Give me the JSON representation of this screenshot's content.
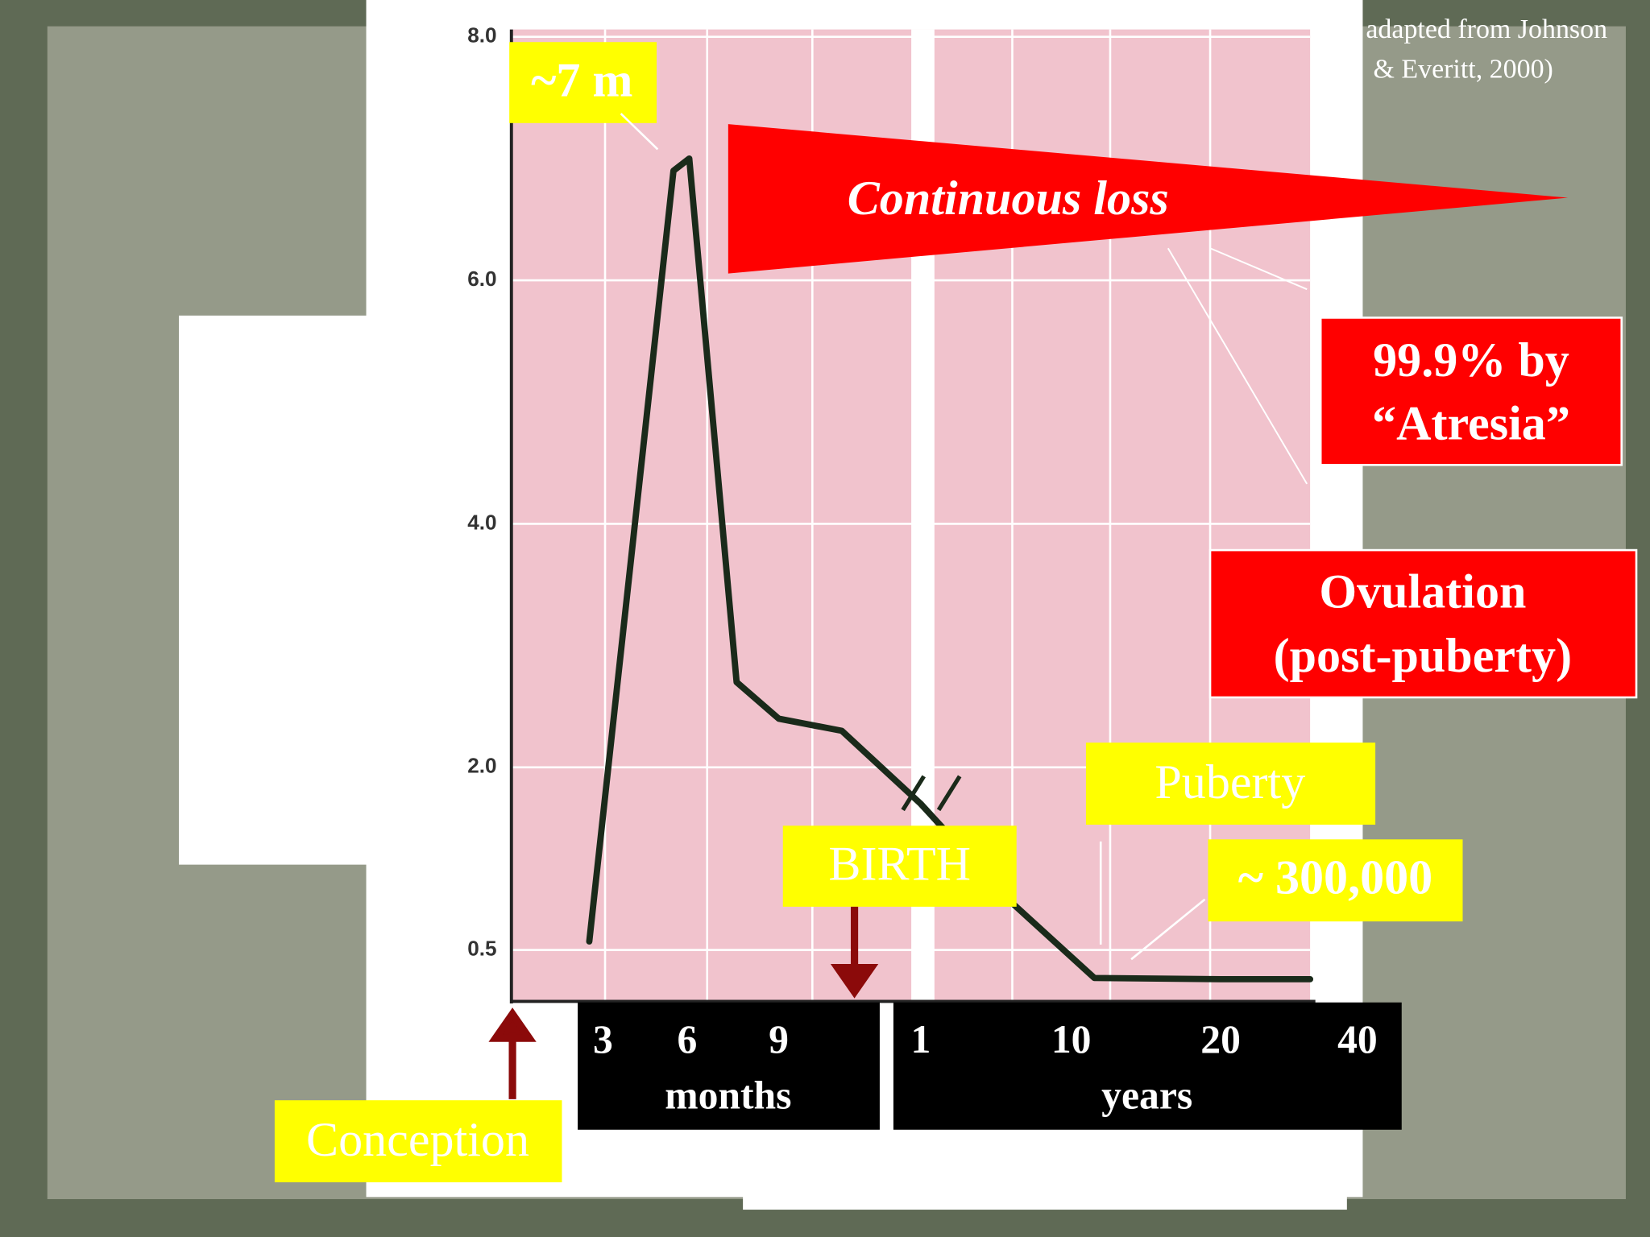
{
  "chart_data": {
    "type": "line",
    "categories": [
      "3",
      null,
      "6",
      null,
      "9",
      null,
      "1",
      null,
      "10",
      "20",
      "40"
    ],
    "x_group_labels": [
      "months",
      "years"
    ],
    "series": [
      {
        "color": "#1a2a1a",
        "values": [
          0.57,
          6.9,
          7.0,
          2.7,
          2.4,
          2.3,
          1.7,
          0.9,
          0.27,
          0.26,
          0.26
        ]
      }
    ],
    "ylim": [
      0,
      8
    ],
    "yticks": [
      {
        "value": 8,
        "label": "8.0"
      },
      {
        "value": 6,
        "label": "6.0"
      },
      {
        "value": 4,
        "label": "4.0"
      },
      {
        "value": 2,
        "label": "2.0"
      },
      {
        "value": 0.5,
        "label": "0.5"
      }
    ],
    "grid": true,
    "annotations": [
      "~7 m",
      "Continuous loss",
      "99.9% by",
      "“Atresia”",
      "Ovulation",
      "(post-puberty)",
      "Puberty",
      "~ 300,000",
      "BIRTH",
      "Conception"
    ],
    "source": [
      "adapted from Johnson",
      "& Everitt, 2000)"
    ]
  }
}
